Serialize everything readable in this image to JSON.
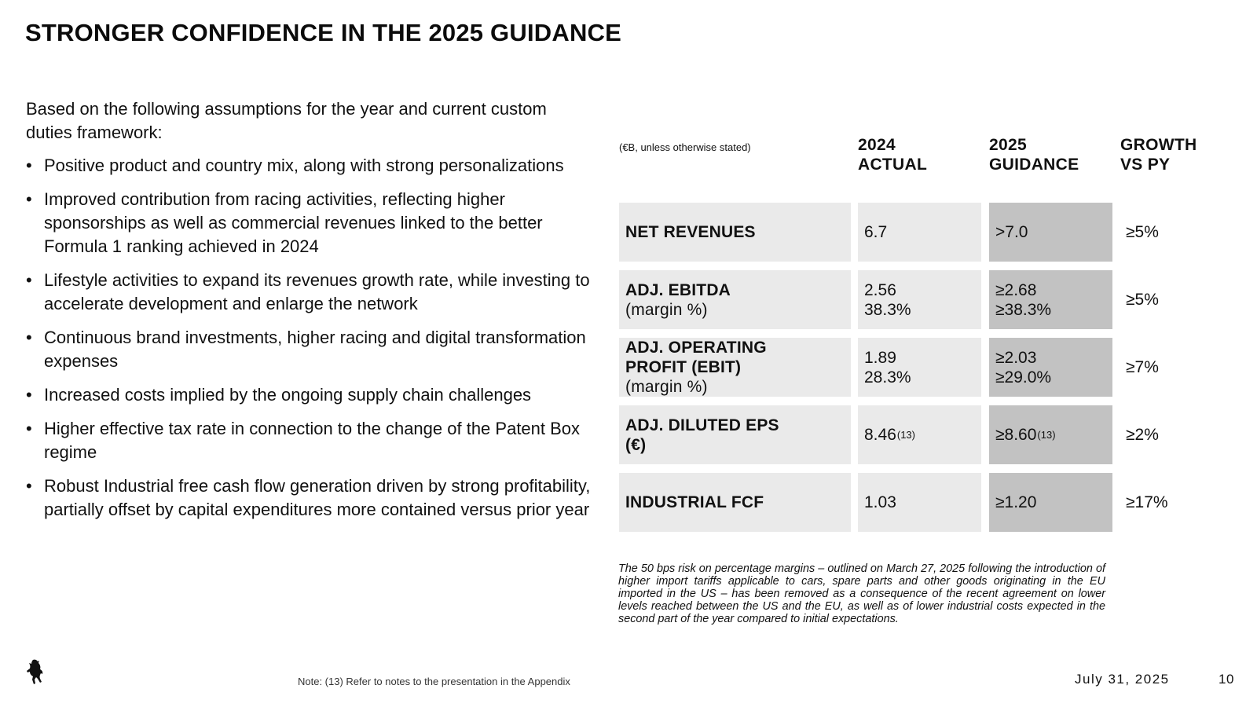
{
  "title": "STRONGER CONFIDENCE IN THE 2025 GUIDANCE",
  "intro": "Based on the following assumptions for the year and current custom duties framework:",
  "bullet_char": "•",
  "bullets": [
    "Positive product and country mix, along with strong personalizations",
    "Improved contribution from racing activities, reflecting higher sponsorships as well as commercial revenues linked to the better Formula 1 ranking achieved in 2024",
    "Lifestyle activities to expand its revenues growth rate, while investing to accelerate development and enlarge the network",
    "Continuous brand investments, higher racing and digital transformation expenses",
    "Increased costs implied by the ongoing supply chain challenges",
    "Higher effective tax rate in connection to the change of the Patent Box regime",
    "Robust Industrial free cash flow generation driven by strong profitability, partially offset by capital expenditures more contained versus prior year"
  ],
  "table": {
    "unit_note": "(€B, unless otherwise stated)",
    "headers": {
      "actual": [
        "2024",
        "ACTUAL"
      ],
      "guidance": [
        "2025",
        "GUIDANCE"
      ],
      "growth": [
        "GROWTH",
        "VS PY"
      ]
    },
    "rows": [
      {
        "metric": [
          "NET REVENUES"
        ],
        "actual": [
          "6.7"
        ],
        "actual_note": "",
        "guidance": [
          ">7.0"
        ],
        "guidance_note": "",
        "growth": "≥5%"
      },
      {
        "metric": [
          "ADJ. EBITDA",
          "(margin %)"
        ],
        "actual": [
          "2.56",
          "38.3%"
        ],
        "actual_note": "",
        "guidance": [
          "≥2.68",
          "≥38.3%"
        ],
        "guidance_note": "",
        "growth": "≥5%"
      },
      {
        "metric": [
          "ADJ. OPERATING",
          "PROFIT (EBIT)",
          "(margin %)"
        ],
        "actual": [
          "1.89",
          "28.3%"
        ],
        "actual_note": "",
        "guidance": [
          "≥2.03",
          "≥29.0%"
        ],
        "guidance_note": "",
        "growth": "≥7%"
      },
      {
        "metric": [
          "ADJ. DILUTED EPS",
          "(€)"
        ],
        "actual": [
          "8.46"
        ],
        "actual_note": "(13)",
        "guidance": [
          "≥8.60"
        ],
        "guidance_note": "(13)",
        "growth": "≥2%"
      },
      {
        "metric": [
          "INDUSTRIAL FCF"
        ],
        "actual": [
          "1.03"
        ],
        "actual_note": "",
        "guidance": [
          "≥1.20"
        ],
        "guidance_note": "",
        "growth": "≥17%"
      }
    ]
  },
  "footnote": "The 50 bps risk on percentage margins – outlined on March 27, 2025 following the introduction of higher import tariffs applicable to cars, spare parts and other goods originating in the EU imported in the US – has been removed as a consequence of the recent agreement on lower levels reached between the US and the EU, as well as of lower industrial costs expected in the second part of the year compared to initial expectations.",
  "bottom_note": "Note: (13) Refer to notes to the presentation in the Appendix",
  "date": "July 31, 2025",
  "page_number": "10",
  "colors": {
    "metric_cell": "#eaeaea",
    "actual_cell": "#eaeaea",
    "guidance_cell": "#c2c2c2",
    "text": "#111111"
  },
  "logo_icon": "prancing-horse-icon"
}
